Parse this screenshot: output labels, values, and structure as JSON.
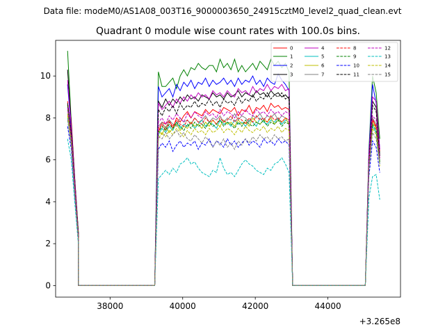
{
  "header": {
    "suptitle": "Data file: modeM0/AS1A08_003T16_9000003650_24915cztM0_level2_quad_clean.evt"
  },
  "chart_data": {
    "type": "line",
    "title": "Quadrant 0 module wise count rates with 100.0s bins.",
    "xlabel": "",
    "ylabel": "",
    "x_offset_label": "+3.265e8",
    "xlim": [
      36500,
      46000
    ],
    "ylim": [
      -0.55,
      11.7
    ],
    "xticks": [
      38000,
      40000,
      42000,
      44000
    ],
    "xtick_labels": [
      "38000",
      "40000",
      "42000",
      "44000"
    ],
    "yticks": [
      0,
      2,
      4,
      6,
      8,
      10
    ],
    "ytick_labels": [
      "0",
      "2",
      "4",
      "6",
      "8",
      "10"
    ],
    "grid": false,
    "legend_position": "top-right",
    "segments": [
      {
        "x_start": 36830,
        "count": 4
      },
      {
        "x_start": 39330,
        "count": 37
      },
      {
        "x_start": 45130,
        "count": 4
      }
    ],
    "gaps_zero": [
      [
        37130,
        39230
      ],
      [
        43030,
        45030
      ]
    ],
    "series": [
      {
        "name": "0",
        "color": "#ff0000",
        "dash": false,
        "v1": [
          9.6,
          7.9,
          5.0,
          2.4
        ],
        "v2": [
          7.3,
          7.8,
          7.7,
          7.9,
          7.5,
          8.0,
          7.8,
          8.1,
          8.3,
          8.0,
          8.3,
          8.2,
          8.1,
          8.4,
          8.2,
          8.4,
          8.3,
          8.2,
          8.5,
          8.4,
          8.3,
          8.5,
          8.1,
          8.4,
          8.3,
          8.6,
          8.2,
          8.5,
          8.4,
          8.6,
          8.3,
          8.7,
          8.5,
          8.6,
          8.4,
          8.5,
          8.4
        ],
        "v3": [
          6.3,
          8.0,
          7.5,
          6.4
        ]
      },
      {
        "name": "1",
        "color": "#008000",
        "dash": false,
        "v1": [
          11.2,
          7.8,
          5.0,
          2.5
        ],
        "v2": [
          10.2,
          9.5,
          9.5,
          9.7,
          9.9,
          9.4,
          10.0,
          10.3,
          10.0,
          10.4,
          10.3,
          10.6,
          10.4,
          10.3,
          10.5,
          10.5,
          10.2,
          10.8,
          10.4,
          10.6,
          10.3,
          10.8,
          10.2,
          10.5,
          10.2,
          10.4,
          10.6,
          10.3,
          10.7,
          10.5,
          10.3,
          10.8,
          10.5,
          10.7,
          10.4,
          10.6,
          10.2
        ],
        "v3": [
          6.5,
          10.0,
          9.2,
          7.0
        ]
      },
      {
        "name": "2",
        "color": "#0000ff",
        "dash": false,
        "v1": [
          9.6,
          7.4,
          4.8,
          2.4
        ],
        "v2": [
          9.5,
          9.0,
          9.2,
          9.4,
          9.0,
          9.6,
          9.3,
          9.7,
          9.5,
          9.8,
          9.4,
          9.7,
          9.6,
          9.9,
          9.5,
          9.8,
          9.6,
          9.7,
          9.9,
          9.6,
          9.8,
          9.5,
          9.9,
          9.6,
          9.8,
          9.7,
          10.0,
          9.6,
          9.8,
          9.5,
          9.9,
          9.7,
          9.6,
          10.1,
          9.8,
          9.6,
          9.3
        ],
        "v3": [
          6.3,
          9.6,
          8.7,
          6.5
        ]
      },
      {
        "name": "3",
        "color": "#000000",
        "dash": false,
        "v1": [
          10.3,
          7.7,
          5.0,
          2.4
        ],
        "v2": [
          8.8,
          8.5,
          8.9,
          8.6,
          8.9,
          8.7,
          9.0,
          8.8,
          9.1,
          8.9,
          9.0,
          8.8,
          9.1,
          9.0,
          8.9,
          9.2,
          9.0,
          9.1,
          8.9,
          9.2,
          9.0,
          9.1,
          9.3,
          9.0,
          9.2,
          9.1,
          9.0,
          9.3,
          9.1,
          9.2,
          9.0,
          9.3,
          9.1,
          9.2,
          9.0,
          9.1,
          8.9
        ],
        "v3": [
          6.0,
          8.8,
          8.5,
          6.2
        ]
      },
      {
        "name": "4",
        "color": "#bf00bf",
        "dash": false,
        "v1": [
          9.8,
          7.6,
          4.9,
          2.4
        ],
        "v2": [
          8.7,
          8.4,
          8.6,
          8.8,
          8.5,
          8.9,
          8.7,
          9.0,
          8.8,
          9.1,
          8.9,
          9.2,
          9.0,
          9.1,
          8.9,
          9.3,
          9.1,
          9.2,
          9.0,
          9.3,
          9.1,
          9.0,
          9.4,
          9.2,
          9.3,
          9.1,
          9.5,
          9.2,
          9.4,
          9.3,
          9.6,
          9.3,
          9.5,
          9.4,
          9.6,
          9.3,
          9.4
        ],
        "v3": [
          6.2,
          9.0,
          8.8,
          6.5
        ]
      },
      {
        "name": "5",
        "color": "#00bfbf",
        "dash": false,
        "v1": [
          8.0,
          6.8,
          4.4,
          2.2
        ],
        "v2": [
          7.2,
          7.5,
          7.3,
          7.6,
          7.4,
          7.8,
          7.5,
          7.7,
          7.6,
          7.8,
          7.5,
          7.7,
          7.9,
          7.6,
          7.8,
          7.7,
          7.5,
          7.9,
          7.7,
          7.8,
          7.6,
          7.9,
          7.7,
          7.8,
          7.6,
          7.9,
          7.8,
          7.6,
          8.0,
          7.8,
          7.7,
          7.9,
          7.8,
          8.0,
          7.7,
          7.9,
          7.8
        ],
        "v3": [
          5.6,
          7.6,
          7.3,
          5.8
        ]
      },
      {
        "name": "6",
        "color": "#bfbf00",
        "dash": false,
        "v1": [
          8.2,
          6.9,
          4.4,
          2.2
        ],
        "v2": [
          7.4,
          7.2,
          7.6,
          7.3,
          7.5,
          7.7,
          7.4,
          7.6,
          7.5,
          7.8,
          7.6,
          7.7,
          7.5,
          7.8,
          7.6,
          7.9,
          7.7,
          7.6,
          7.9,
          7.7,
          7.8,
          7.6,
          7.9,
          7.7,
          7.8,
          7.6,
          8.0,
          7.8,
          7.7,
          7.9,
          7.8,
          8.0,
          7.7,
          7.9,
          7.8,
          8.0,
          7.7
        ],
        "v3": [
          5.7,
          7.8,
          7.5,
          5.9
        ]
      },
      {
        "name": "7",
        "color": "#808080",
        "dash": false,
        "v1": [
          8.4,
          7.0,
          4.5,
          2.2
        ],
        "v2": [
          7.6,
          7.8,
          7.5,
          7.9,
          7.7,
          7.6,
          8.0,
          7.8,
          7.9,
          7.7,
          8.0,
          7.8,
          7.9,
          8.1,
          7.8,
          8.0,
          7.9,
          8.1,
          7.8,
          8.0,
          7.9,
          8.2,
          7.9,
          8.1,
          8.0,
          7.8,
          8.1,
          8.0,
          8.2,
          7.9,
          8.1,
          8.0,
          8.2,
          7.9,
          8.1,
          8.0,
          7.9
        ],
        "v3": [
          5.8,
          8.0,
          7.7,
          6.0
        ]
      },
      {
        "name": "8",
        "color": "#ff0000",
        "dash": true,
        "v1": [
          8.8,
          7.2,
          4.6,
          2.3
        ],
        "v2": [
          7.5,
          7.7,
          7.4,
          7.8,
          7.6,
          7.9,
          7.7,
          7.6,
          7.9,
          7.7,
          8.0,
          7.8,
          7.7,
          8.0,
          7.8,
          7.9,
          7.7,
          8.0,
          7.8,
          7.9,
          8.1,
          7.8,
          8.0,
          7.9,
          7.7,
          8.0,
          7.8,
          8.1,
          7.9,
          8.0,
          7.8,
          8.1,
          7.9,
          8.0,
          7.8,
          8.0,
          7.9
        ],
        "v3": [
          5.9,
          7.9,
          7.6,
          6.1
        ]
      },
      {
        "name": "9",
        "color": "#008000",
        "dash": true,
        "v1": [
          8.6,
          7.1,
          4.5,
          2.3
        ],
        "v2": [
          7.3,
          7.6,
          7.4,
          7.7,
          7.5,
          7.8,
          7.6,
          7.4,
          7.7,
          7.5,
          7.8,
          7.6,
          7.7,
          7.5,
          7.8,
          7.6,
          7.7,
          7.9,
          7.6,
          7.8,
          7.7,
          7.5,
          7.8,
          7.6,
          7.9,
          7.7,
          7.6,
          7.8,
          7.7,
          7.9,
          7.6,
          7.8,
          7.7,
          7.9,
          7.6,
          7.8,
          7.7
        ],
        "v3": [
          5.7,
          7.7,
          7.4,
          5.9
        ]
      },
      {
        "name": "10",
        "color": "#0000ff",
        "dash": true,
        "v1": [
          7.6,
          6.5,
          4.2,
          2.1
        ],
        "v2": [
          6.5,
          6.8,
          6.6,
          6.9,
          6.4,
          6.7,
          6.9,
          6.6,
          6.8,
          6.7,
          6.9,
          6.5,
          6.8,
          6.7,
          7.0,
          6.6,
          6.9,
          6.8,
          6.6,
          7.0,
          6.7,
          6.9,
          6.6,
          6.8,
          7.0,
          6.7,
          6.9,
          6.8,
          6.6,
          7.0,
          6.8,
          6.9,
          6.7,
          7.0,
          6.8,
          6.9,
          6.7
        ],
        "v3": [
          5.2,
          6.9,
          6.6,
          5.4
        ]
      },
      {
        "name": "11",
        "color": "#000000",
        "dash": true,
        "v1": [
          8.7,
          7.2,
          4.6,
          2.3
        ],
        "v2": [
          8.4,
          8.1,
          8.5,
          8.3,
          8.6,
          8.2,
          8.7,
          8.4,
          8.6,
          8.5,
          8.8,
          8.5,
          8.7,
          8.6,
          8.9,
          8.6,
          8.8,
          8.5,
          8.9,
          8.7,
          8.8,
          8.6,
          9.0,
          8.7,
          8.9,
          8.8,
          9.1,
          8.8,
          9.0,
          8.9,
          9.2,
          8.9,
          9.1,
          9.0,
          9.2,
          8.9,
          9.0
        ],
        "v3": [
          6.0,
          8.6,
          8.3,
          6.2
        ]
      },
      {
        "name": "12",
        "color": "#bf00bf",
        "dash": true,
        "v1": [
          8.5,
          7.0,
          4.5,
          2.2
        ],
        "v2": [
          7.8,
          8.0,
          7.7,
          8.1,
          7.9,
          8.2,
          8.0,
          7.8,
          8.2,
          8.0,
          8.3,
          8.1,
          8.0,
          8.3,
          8.1,
          8.2,
          8.0,
          8.4,
          8.1,
          8.3,
          8.2,
          8.0,
          8.3,
          8.1,
          8.4,
          8.2,
          8.1,
          8.4,
          8.2,
          8.3,
          8.1,
          8.4,
          8.2,
          8.3,
          8.1,
          8.3,
          8.2
        ],
        "v3": [
          5.9,
          8.1,
          7.9,
          6.1
        ]
      },
      {
        "name": "13",
        "color": "#00bfbf",
        "dash": true,
        "v1": [
          7.0,
          6.0,
          3.9,
          1.9
        ],
        "v2": [
          5.1,
          5.3,
          5.5,
          5.3,
          5.6,
          5.4,
          5.8,
          5.9,
          6.1,
          5.8,
          5.9,
          5.6,
          5.4,
          5.3,
          5.2,
          5.5,
          5.4,
          6.1,
          5.6,
          5.3,
          5.4,
          5.2,
          5.5,
          5.8,
          6.0,
          5.8,
          5.7,
          5.5,
          5.4,
          5.3,
          5.6,
          5.5,
          5.8,
          5.9,
          6.1,
          5.8,
          5.4
        ],
        "v3": [
          4.2,
          5.2,
          5.3,
          4.1
        ]
      },
      {
        "name": "14",
        "color": "#bfbf00",
        "dash": true,
        "v1": [
          8.1,
          6.8,
          4.4,
          2.2
        ],
        "v2": [
          7.0,
          7.3,
          7.1,
          7.4,
          7.2,
          7.5,
          7.3,
          7.1,
          7.4,
          7.2,
          7.5,
          7.3,
          7.4,
          7.2,
          7.5,
          7.3,
          7.4,
          7.6,
          7.3,
          7.5,
          7.4,
          7.2,
          7.5,
          7.3,
          7.6,
          7.4,
          7.3,
          7.5,
          7.4,
          7.6,
          7.3,
          7.5,
          7.4,
          7.6,
          7.3,
          7.5,
          7.4
        ],
        "v3": [
          5.5,
          7.5,
          7.2,
          5.7
        ]
      },
      {
        "name": "15",
        "color": "#808080",
        "dash": true,
        "v1": [
          7.9,
          6.7,
          4.3,
          2.1
        ],
        "v2": [
          7.1,
          7.0,
          7.3,
          7.0,
          7.2,
          7.4,
          7.1,
          7.3,
          7.0,
          6.9,
          7.2,
          7.0,
          6.8,
          7.1,
          6.9,
          6.6,
          6.9,
          6.7,
          7.0,
          6.6,
          6.8,
          6.5,
          6.9,
          6.7,
          7.0,
          6.8,
          7.1,
          6.9,
          7.2,
          7.0,
          7.1,
          6.9,
          7.2,
          7.0,
          7.1,
          6.9,
          7.0
        ],
        "v3": [
          5.6,
          7.3,
          7.0,
          5.8
        ]
      }
    ]
  }
}
